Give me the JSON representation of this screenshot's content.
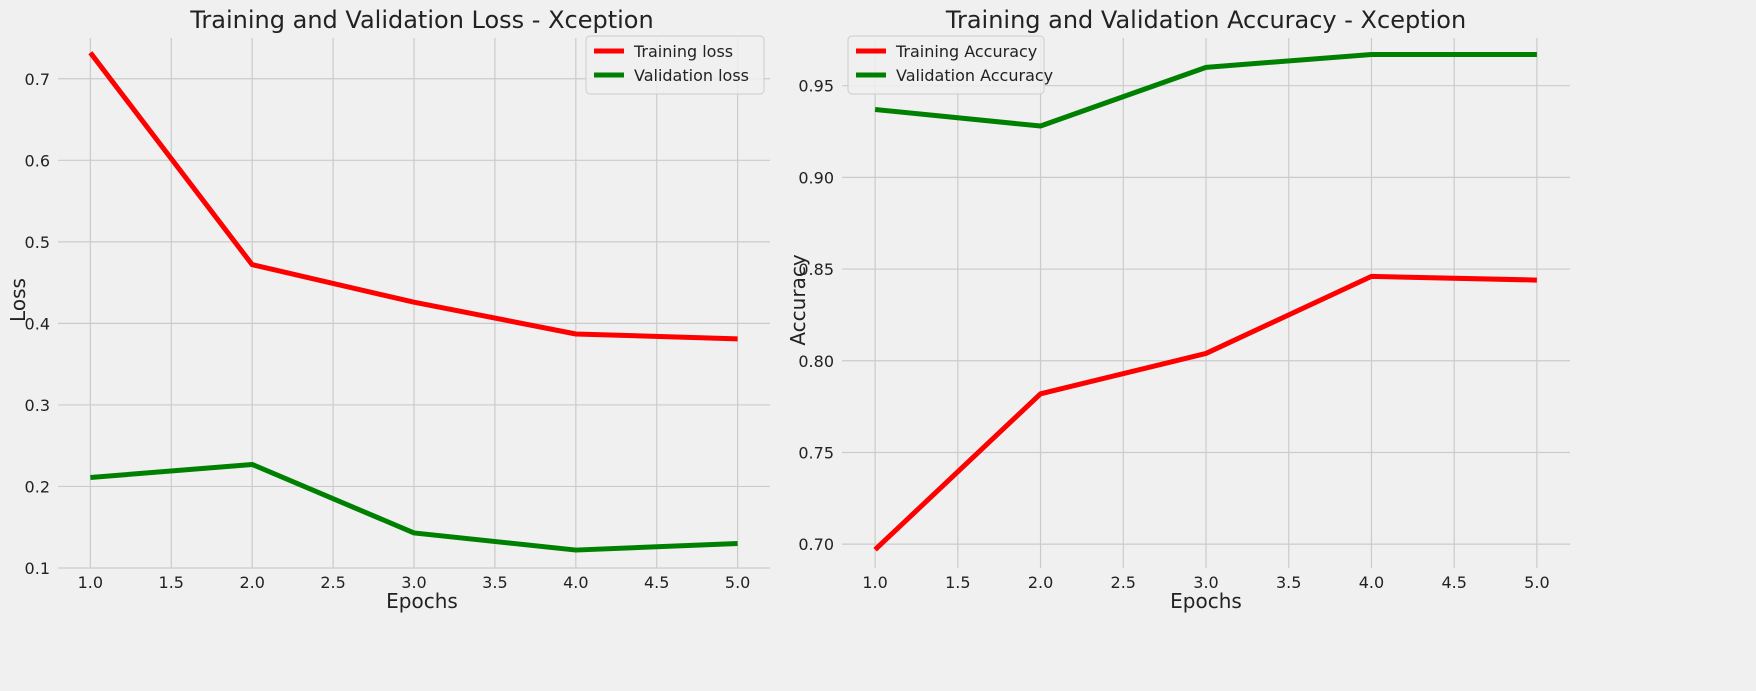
{
  "chart_data": [
    {
      "type": "line",
      "title": "Training and Validation Loss - Xception",
      "xlabel": "Epochs",
      "ylabel": "Loss",
      "x": [
        1,
        2,
        3,
        4,
        5
      ],
      "xlim": [
        0.8,
        5.2
      ],
      "ylim": [
        0.1,
        0.75
      ],
      "xticks": [
        1.0,
        1.5,
        2.0,
        2.5,
        3.0,
        3.5,
        4.0,
        4.5,
        5.0
      ],
      "yticks": [
        0.1,
        0.2,
        0.3,
        0.4,
        0.5,
        0.6,
        0.7
      ],
      "tick_decimals": {
        "x": 1,
        "y": 1
      },
      "grid": true,
      "legend_position": "top-right",
      "series": [
        {
          "name": "Training loss",
          "color": "#ff0000",
          "values": [
            0.732,
            0.472,
            0.426,
            0.387,
            0.381
          ]
        },
        {
          "name": "Validation loss",
          "color": "#008000",
          "values": [
            0.211,
            0.227,
            0.143,
            0.122,
            0.13
          ]
        }
      ]
    },
    {
      "type": "line",
      "title": "Training and Validation Accuracy - Xception",
      "xlabel": "Epochs",
      "ylabel": "Accuracy",
      "x": [
        1,
        2,
        3,
        4,
        5
      ],
      "xlim": [
        0.8,
        5.2
      ],
      "ylim": [
        0.687,
        0.976
      ],
      "xticks": [
        1.0,
        1.5,
        2.0,
        2.5,
        3.0,
        3.5,
        4.0,
        4.5,
        5.0
      ],
      "yticks": [
        0.7,
        0.75,
        0.8,
        0.85,
        0.9,
        0.95
      ],
      "tick_decimals": {
        "x": 1,
        "y": 2
      },
      "grid": true,
      "legend_position": "top-left",
      "series": [
        {
          "name": "Training Accuracy",
          "color": "#ff0000",
          "values": [
            0.697,
            0.782,
            0.804,
            0.846,
            0.844
          ]
        },
        {
          "name": "Validation Accuracy",
          "color": "#008000",
          "values": [
            0.937,
            0.928,
            0.96,
            0.967,
            0.967
          ]
        }
      ]
    }
  ]
}
